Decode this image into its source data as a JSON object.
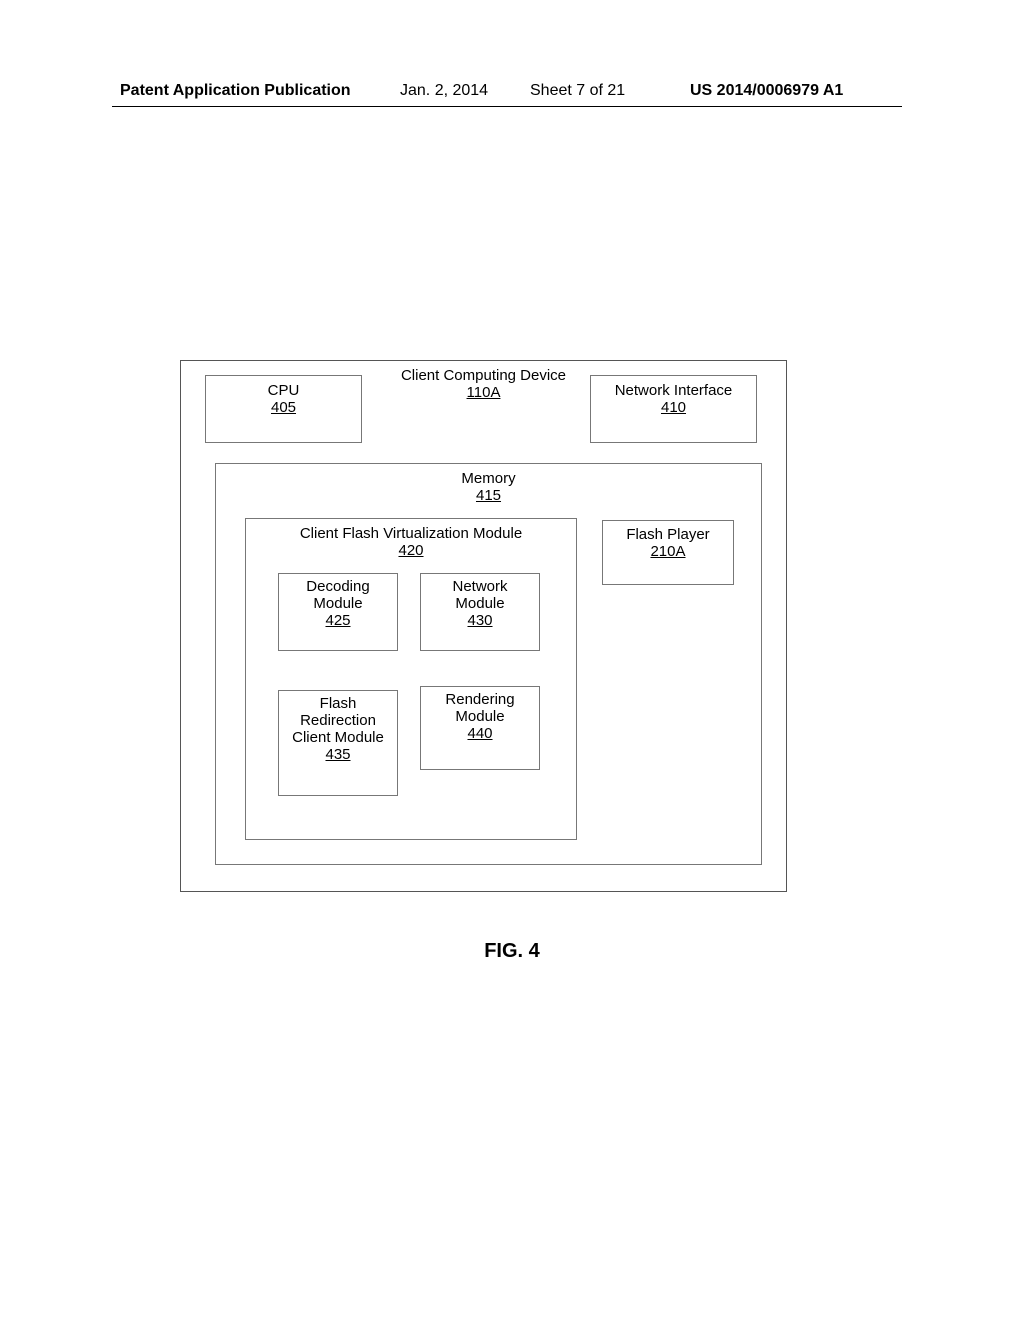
{
  "header": {
    "left": "Patent Application Publication",
    "date": "Jan. 2, 2014",
    "sheet": "Sheet 7 of 21",
    "pubno": "US 2014/0006979 A1"
  },
  "figure_caption": "FIG. 4",
  "diagram": {
    "outer": {
      "title": "Client Computing Device",
      "ref": "110A"
    },
    "cpu": {
      "label": "CPU",
      "ref": "405"
    },
    "net_if": {
      "label": "Network Interface",
      "ref": "410"
    },
    "memory": {
      "label": "Memory",
      "ref": "415"
    },
    "cfvm": {
      "label": "Client Flash Virtualization Module",
      "ref": "420"
    },
    "flash_player": {
      "label": "Flash Player",
      "ref": "210A"
    },
    "decoding": {
      "label1": "Decoding",
      "label2": "Module",
      "ref": "425"
    },
    "network_module": {
      "label1": "Network",
      "label2": "Module",
      "ref": "430"
    },
    "flash_redir": {
      "label1": "Flash",
      "label2": "Redirection",
      "label3": "Client Module",
      "ref": "435"
    },
    "rendering": {
      "label1": "Rendering",
      "label2": "Module",
      "ref": "440"
    }
  },
  "style": {
    "page_bg": "#ffffff",
    "border_color": "#777777",
    "text_color": "#000000",
    "font_family": "Arial",
    "title_fontsize": 15,
    "header_fontsize": 16,
    "caption_fontsize": 20
  }
}
